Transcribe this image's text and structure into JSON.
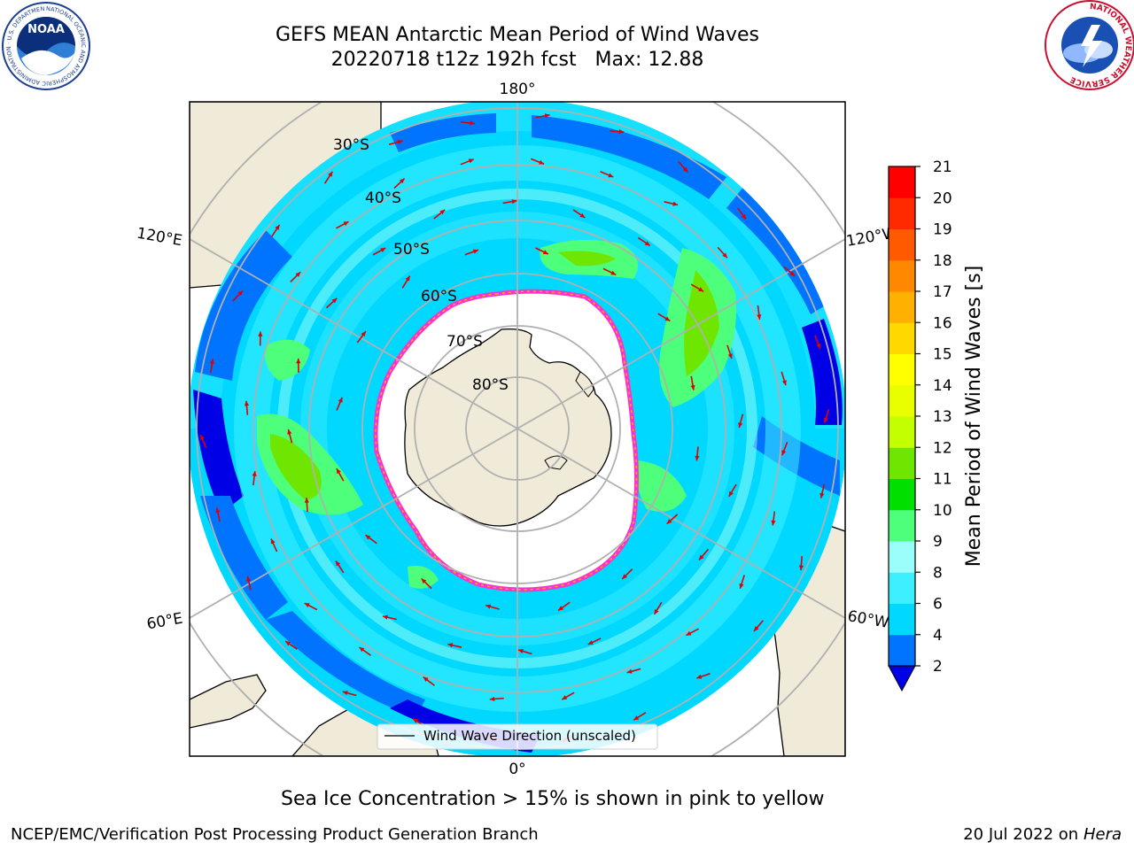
{
  "header": {
    "title_line1": "GEFS MEAN Antarctic Mean Period of Wind Waves",
    "title_line2": "20220718 t12z 192h fcst   Max: 12.88"
  },
  "logos": {
    "left": {
      "name": "noaa-logo",
      "text": "NOAA",
      "ring_text": "NATIONAL OCEANIC AND ATMOSPHERIC ADMINISTRATION · U.S. DEPARTMENT OF COMMERCE"
    },
    "right": {
      "name": "nws-logo",
      "ring_text": "NATIONAL WEATHER SERVICE"
    }
  },
  "map": {
    "projection": "south-polar-stereographic",
    "lon_labels": {
      "top": "180°",
      "bottom": "0°",
      "left_upper": "120°E",
      "left_lower": "60°E",
      "right_upper": "120°W",
      "right_lower": "60°W"
    },
    "lat_labels": [
      "30°S",
      "40°S",
      "50°S",
      "60°S",
      "70°S",
      "80°S"
    ],
    "legend": {
      "label": "Wind Wave Direction (unscaled)",
      "arrow_color": "#e00000"
    }
  },
  "colorbar": {
    "label": "Mean Period of Wind Waves [s]",
    "ticks": [
      "2",
      "4",
      "6",
      "8",
      "9",
      "10",
      "11",
      "12",
      "13",
      "14",
      "15",
      "16",
      "17",
      "18",
      "19",
      "20",
      "21"
    ],
    "extend": "min",
    "colors": [
      "#0073ff",
      "#00d8ff",
      "#3ef0ff",
      "#9afff8",
      "#4dff7a",
      "#00e000",
      "#6ee600",
      "#c3ff00",
      "#e9ff00",
      "#ffff00",
      "#ffd800",
      "#ffb000",
      "#ff8800",
      "#ff5a00",
      "#ff2a00",
      "#ff0000"
    ],
    "under_color": "#0000e6"
  },
  "caption": "Sea Ice Concentration > 15% is shown in pink to yellow",
  "footer": {
    "left": "NCEP/EMC/Verification Post Processing Product Generation Branch",
    "right_date": "20 Jul 2022 on ",
    "right_host": "Hera"
  }
}
